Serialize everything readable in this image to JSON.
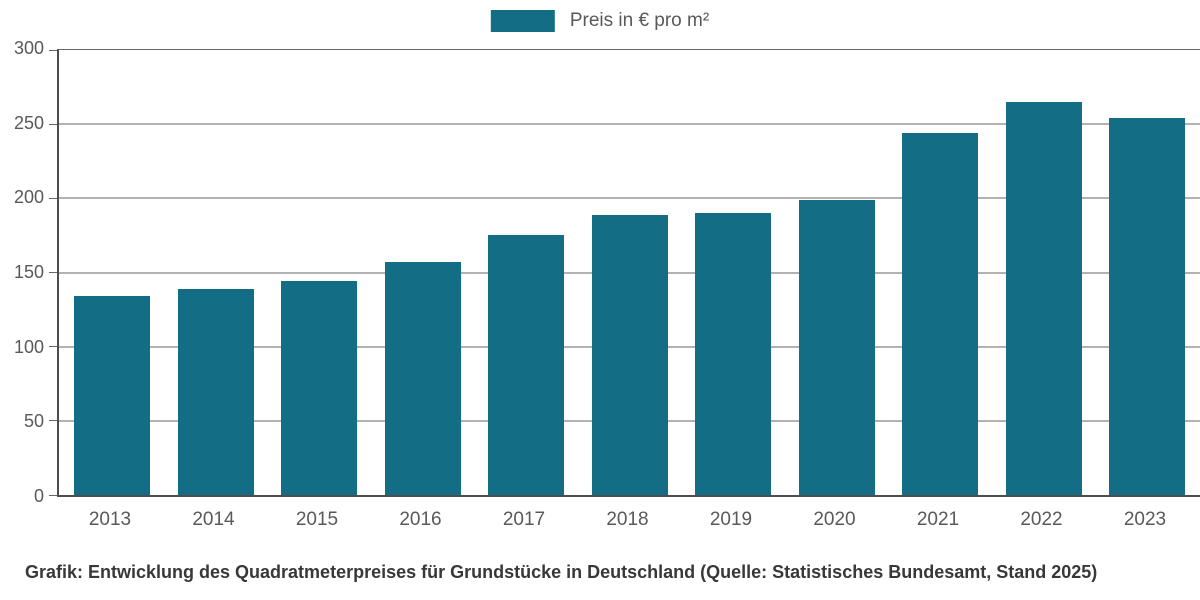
{
  "legend": {
    "label": "Preis in € pro m²"
  },
  "caption": "Grafik: Entwicklung des Quadratmeterpreises für Grundstücke in Deutschland (Quelle: Statistisches Bundesamt, Stand 2025)",
  "colors": {
    "bar": "#136d84",
    "grid": "#666666",
    "axis": "#4d4d4d",
    "tick_text": "#595959",
    "caption_text": "#383838"
  },
  "chart_data": {
    "type": "bar",
    "title": "",
    "categories": [
      "2013",
      "2014",
      "2015",
      "2016",
      "2017",
      "2018",
      "2019",
      "2020",
      "2021",
      "2022",
      "2023"
    ],
    "values": [
      134,
      139,
      144,
      157,
      175,
      189,
      190,
      199,
      244,
      265,
      254
    ],
    "series_name": "Preis in € pro m²",
    "xlabel": "",
    "ylabel": "",
    "ylim": [
      0,
      300
    ],
    "yticks": [
      0,
      50,
      100,
      150,
      200,
      250,
      300
    ],
    "grid": true,
    "legend_position": "top-center",
    "source_note": "Quelle: Statistisches Bundesamt, Stand 2025"
  }
}
